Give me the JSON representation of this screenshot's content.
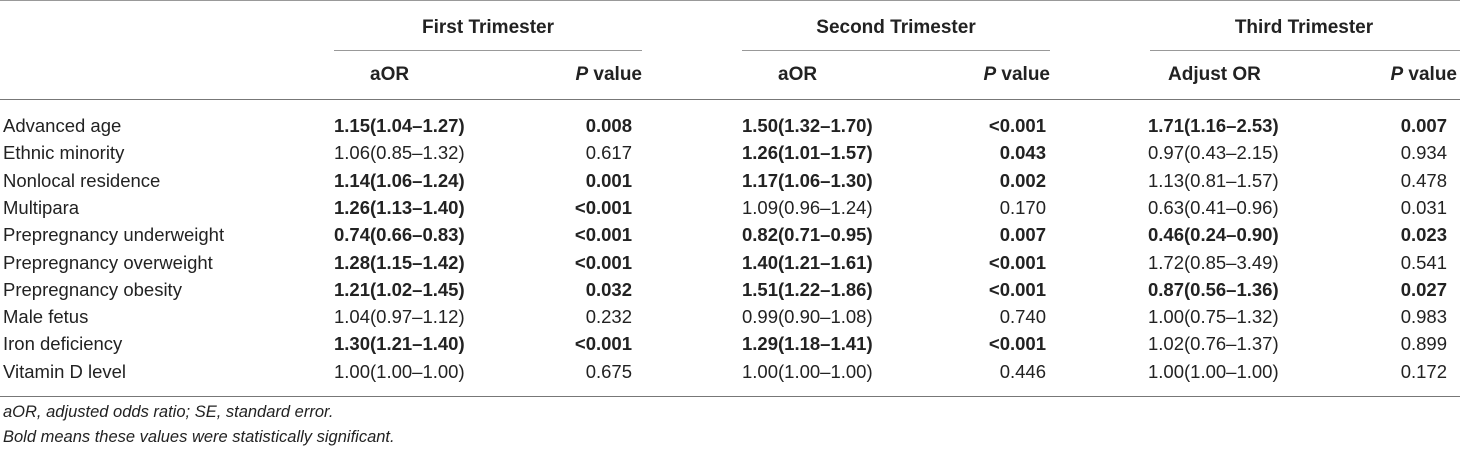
{
  "groups": [
    "First Trimester",
    "Second Trimester",
    "Third Trimester"
  ],
  "columns": {
    "first": {
      "or": "aOR",
      "p_italic": "P",
      "p_rest": " value"
    },
    "second": {
      "or": "aOR",
      "p_italic": "P",
      "p_rest": " value"
    },
    "third": {
      "or": "Adjust OR",
      "p_italic": "P",
      "p_rest": " value"
    }
  },
  "rows": [
    {
      "label": "Advanced age",
      "v": [
        "1.15(1.04–1.27)",
        "0.008",
        "1.50(1.32–1.70)",
        "<0.001",
        "1.71(1.16–2.53)",
        "0.007"
      ],
      "bold": [
        true,
        true,
        true,
        true,
        true,
        true
      ]
    },
    {
      "label": "Ethnic minority",
      "v": [
        "1.06(0.85–1.32)",
        "0.617",
        "1.26(1.01–1.57)",
        "0.043",
        "0.97(0.43–2.15)",
        "0.934"
      ],
      "bold": [
        false,
        false,
        true,
        true,
        false,
        false
      ]
    },
    {
      "label": "Nonlocal residence",
      "v": [
        "1.14(1.06–1.24)",
        "0.001",
        "1.17(1.06–1.30)",
        "0.002",
        "1.13(0.81–1.57)",
        "0.478"
      ],
      "bold": [
        true,
        true,
        true,
        true,
        false,
        false
      ]
    },
    {
      "label": "Multipara",
      "v": [
        "1.26(1.13–1.40)",
        "<0.001",
        "1.09(0.96–1.24)",
        "0.170",
        "0.63(0.41–0.96)",
        "0.031"
      ],
      "bold": [
        true,
        true,
        false,
        false,
        false,
        false
      ]
    },
    {
      "label": "Prepregnancy underweight",
      "v": [
        "0.74(0.66–0.83)",
        "<0.001",
        "0.82(0.71–0.95)",
        "0.007",
        "0.46(0.24–0.90)",
        "0.023"
      ],
      "bold": [
        true,
        true,
        true,
        true,
        true,
        true
      ]
    },
    {
      "label": "Prepregnancy overweight",
      "v": [
        "1.28(1.15–1.42)",
        "<0.001",
        "1.40(1.21–1.61)",
        "<0.001",
        "1.72(0.85–3.49)",
        "0.541"
      ],
      "bold": [
        true,
        true,
        true,
        true,
        false,
        false
      ]
    },
    {
      "label": "Prepregnancy obesity",
      "v": [
        "1.21(1.02–1.45)",
        "0.032",
        "1.51(1.22–1.86)",
        "<0.001",
        "0.87(0.56–1.36)",
        "0.027"
      ],
      "bold": [
        true,
        true,
        true,
        true,
        true,
        true
      ]
    },
    {
      "label": "Male fetus",
      "v": [
        "1.04(0.97–1.12)",
        "0.232",
        "0.99(0.90–1.08)",
        "0.740",
        "1.00(0.75–1.32)",
        "0.983"
      ],
      "bold": [
        false,
        false,
        false,
        false,
        false,
        false
      ]
    },
    {
      "label": "Iron deficiency",
      "v": [
        "1.30(1.21–1.40)",
        "<0.001",
        "1.29(1.18–1.41)",
        "<0.001",
        "1.02(0.76–1.37)",
        "0.899"
      ],
      "bold": [
        true,
        true,
        true,
        true,
        false,
        false
      ]
    },
    {
      "label": "Vitamin D level",
      "v": [
        "1.00(1.00–1.00)",
        "0.675",
        "1.00(1.00–1.00)",
        "0.446",
        "1.00(1.00–1.00)",
        "0.172"
      ],
      "bold": [
        false,
        false,
        false,
        false,
        false,
        false
      ]
    }
  ],
  "notes": [
    "aOR, adjusted odds ratio; SE, standard error.",
    "Bold means these values were statistically significant."
  ]
}
